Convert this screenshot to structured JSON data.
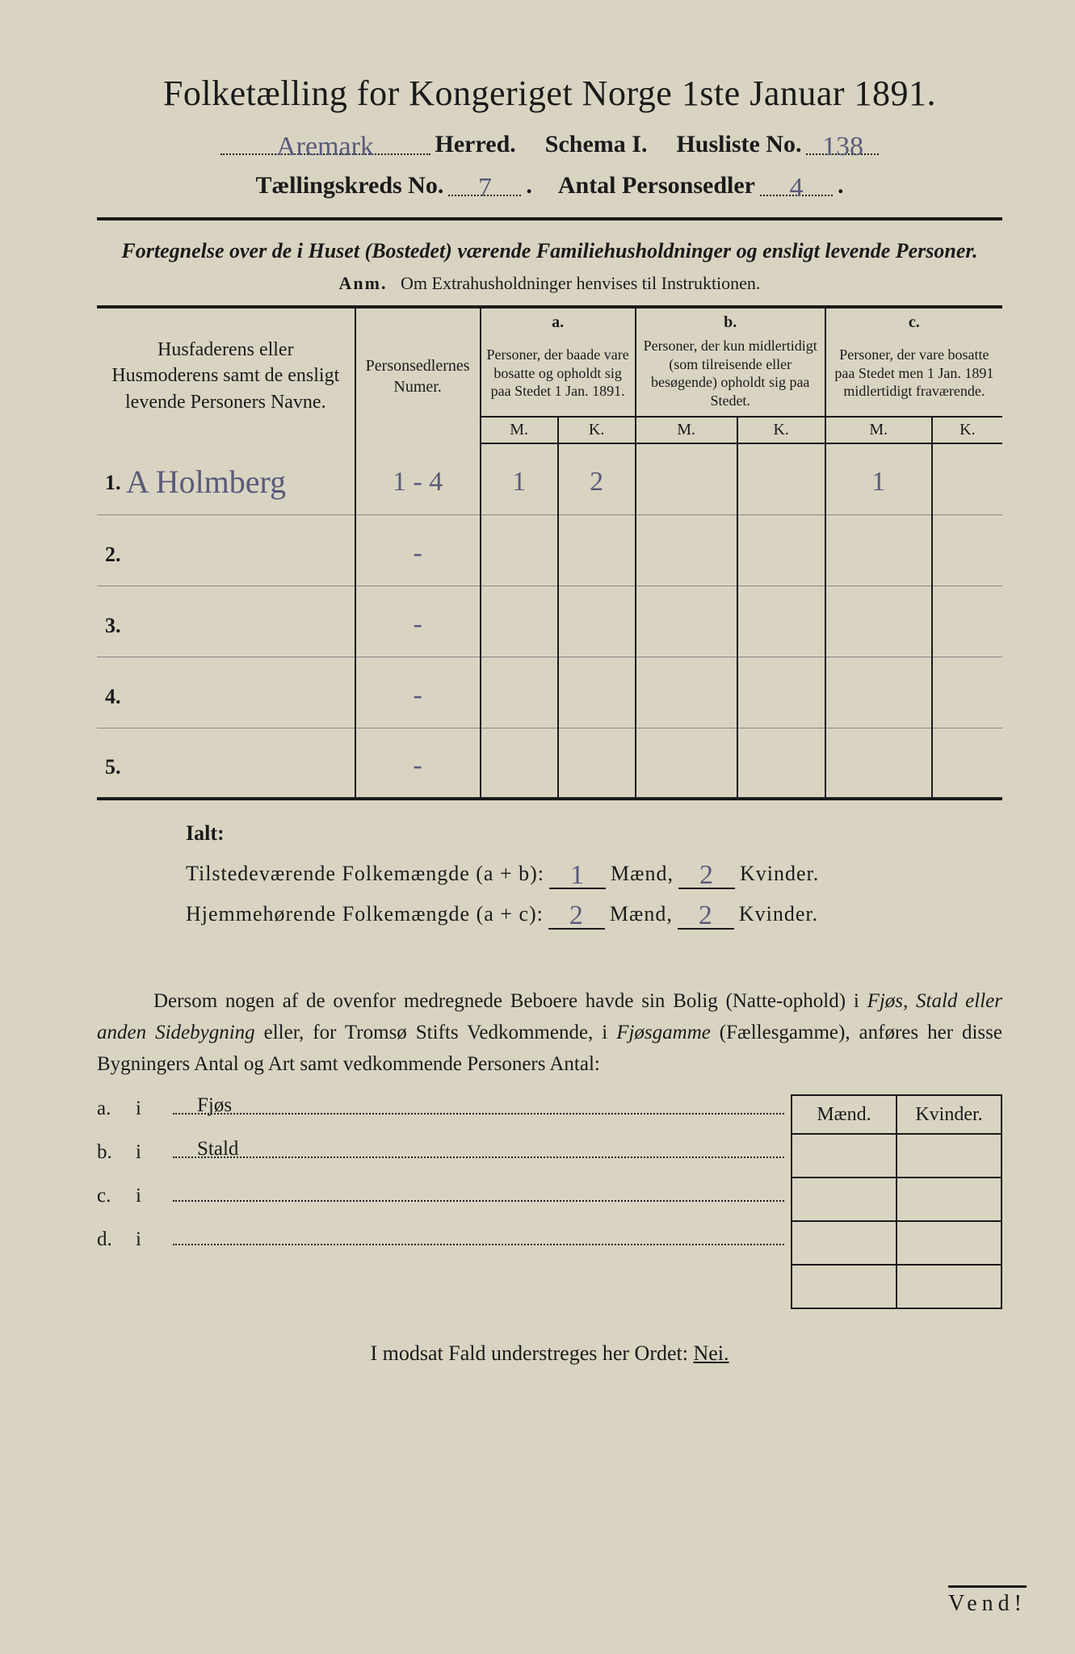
{
  "title": "Folketælling for Kongeriget Norge 1ste Januar 1891.",
  "header": {
    "herred_value": "Aremark",
    "herred_label": "Herred.",
    "schema_label": "Schema I.",
    "husliste_label": "Husliste No.",
    "husliste_value": "138",
    "tkreds_label": "Tællingskreds No.",
    "tkreds_value": "7",
    "antal_label": "Antal Personsedler",
    "antal_value": "4"
  },
  "subtitle": "Fortegnelse over de i Huset (Bostedet) værende Familiehusholdninger og ensligt levende Personer.",
  "anm_lead": "Anm.",
  "anm_text": "Om Extrahusholdninger henvises til Instruktionen.",
  "table": {
    "name_header": "Husfaderens eller Husmoderens samt de ensligt levende Personers Navne.",
    "ps_header": "Personsedlernes Numer.",
    "group_a_label": "a.",
    "group_a_desc": "Personer, der baade vare bosatte og opholdt sig paa Stedet 1 Jan. 1891.",
    "group_b_label": "b.",
    "group_b_desc": "Personer, der kun midlertidigt (som tilreisende eller besøgende) opholdt sig paa Stedet.",
    "group_c_label": "c.",
    "group_c_desc": "Personer, der vare bosatte paa Stedet men 1 Jan. 1891 midlertidigt fraværende.",
    "mk_m": "M.",
    "mk_k": "K.",
    "rows": [
      {
        "n": "1.",
        "name": "A Holmberg",
        "ps": "1 - 4",
        "a_m": "1",
        "a_k": "2",
        "b_m": "",
        "b_k": "",
        "c_m": "1",
        "c_k": ""
      },
      {
        "n": "2.",
        "name": "",
        "ps": "-",
        "a_m": "",
        "a_k": "",
        "b_m": "",
        "b_k": "",
        "c_m": "",
        "c_k": ""
      },
      {
        "n": "3.",
        "name": "",
        "ps": "-",
        "a_m": "",
        "a_k": "",
        "b_m": "",
        "b_k": "",
        "c_m": "",
        "c_k": ""
      },
      {
        "n": "4.",
        "name": "",
        "ps": "-",
        "a_m": "",
        "a_k": "",
        "b_m": "",
        "b_k": "",
        "c_m": "",
        "c_k": ""
      },
      {
        "n": "5.",
        "name": "",
        "ps": "-",
        "a_m": "",
        "a_k": "",
        "b_m": "",
        "b_k": "",
        "c_m": "",
        "c_k": ""
      }
    ]
  },
  "ialt": {
    "lead": "Ialt:",
    "line1_label": "Tilstedeværende Folkemængde (a + b):",
    "line1_m": "1",
    "maend": "Mænd,",
    "line1_k": "2",
    "kvinder": "Kvinder.",
    "line2_label": "Hjemmehørende Folkemængde (a + c):",
    "line2_m": "2",
    "line2_k": "2"
  },
  "dersom": {
    "p1a": "Dersom nogen af de ovenfor medregnede Beboere havde sin Bolig (Natte-ophold) i ",
    "p1b": "Fjøs, Stald eller anden Sidebygning",
    "p1c": " eller, for Tromsø Stifts Vedkommende, i ",
    "p1d": "Fjøsgamme",
    "p1e": " (Fællesgamme), anføres her disse Bygningers Antal og Art samt vedkommende Personers Antal:"
  },
  "mk_header_m": "Mænd.",
  "mk_header_k": "Kvinder.",
  "side_rows": [
    {
      "lab": "a.",
      "i": "i",
      "txt": "Fjøs"
    },
    {
      "lab": "b.",
      "i": "i",
      "txt": "Stald"
    },
    {
      "lab": "c.",
      "i": "i",
      "txt": ""
    },
    {
      "lab": "d.",
      "i": "i",
      "txt": ""
    }
  ],
  "modsat_a": "I modsat Fald understreges her Ordet: ",
  "modsat_nei": "Nei.",
  "vend": "Vend!"
}
